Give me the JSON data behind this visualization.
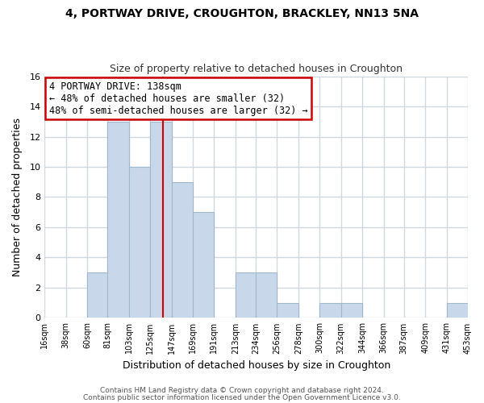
{
  "title": "4, PORTWAY DRIVE, CROUGHTON, BRACKLEY, NN13 5NA",
  "subtitle": "Size of property relative to detached houses in Croughton",
  "xlabel": "Distribution of detached houses by size in Croughton",
  "ylabel": "Number of detached properties",
  "footer_line1": "Contains HM Land Registry data © Crown copyright and database right 2024.",
  "footer_line2": "Contains public sector information licensed under the Open Government Licence v3.0.",
  "annotation_line1": "4 PORTWAY DRIVE: 138sqm",
  "annotation_line2": "← 48% of detached houses are smaller (32)",
  "annotation_line3": "48% of semi-detached houses are larger (32) →",
  "bar_color": "#c8d8ea",
  "bar_edge_color": "#a0b8cc",
  "redline_color": "#cc0000",
  "annotation_box_edge": "#cc0000",
  "grid_color": "#d0d8e0",
  "bins": [
    16,
    38,
    60,
    81,
    103,
    125,
    147,
    169,
    191,
    213,
    234,
    256,
    278,
    300,
    322,
    344,
    366,
    387,
    409,
    431,
    453
  ],
  "counts": [
    0,
    0,
    3,
    13,
    10,
    13,
    9,
    7,
    0,
    3,
    3,
    1,
    0,
    1,
    1,
    0,
    0,
    0,
    0,
    1
  ],
  "redline_x": 138,
  "ylim": [
    0,
    16
  ],
  "yticks": [
    0,
    2,
    4,
    6,
    8,
    10,
    12,
    14,
    16
  ],
  "tick_labels": [
    "16sqm",
    "38sqm",
    "60sqm",
    "81sqm",
    "103sqm",
    "125sqm",
    "147sqm",
    "169sqm",
    "191sqm",
    "213sqm",
    "234sqm",
    "256sqm",
    "278sqm",
    "300sqm",
    "322sqm",
    "344sqm",
    "366sqm",
    "387sqm",
    "409sqm",
    "431sqm",
    "453sqm"
  ],
  "background_color": "#ffffff",
  "fig_background_color": "#ffffff"
}
